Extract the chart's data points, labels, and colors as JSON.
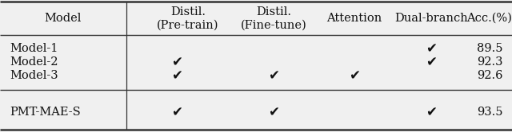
{
  "col_headers": [
    "Model",
    "Distil.\n(Pre-train)",
    "Distil.\n(Fine-tune)",
    "Attention",
    "Dual-branch",
    "Acc.(%)"
  ],
  "rows": [
    {
      "model": "Model-1",
      "pretrain": false,
      "finetune": false,
      "attention": false,
      "dual": true,
      "acc": "89.5"
    },
    {
      "model": "Model-2",
      "pretrain": true,
      "finetune": false,
      "attention": false,
      "dual": true,
      "acc": "92.3"
    },
    {
      "model": "Model-3",
      "pretrain": true,
      "finetune": true,
      "attention": true,
      "dual": false,
      "acc": "92.6"
    },
    {
      "model": "PMT-MAE-S",
      "pretrain": true,
      "finetune": true,
      "attention": false,
      "dual": true,
      "acc": "93.5"
    }
  ],
  "bg_color": "#f0f0f0",
  "text_color": "#111111",
  "line_color": "#333333",
  "header_fontsize": 10.5,
  "data_fontsize": 10.5,
  "check_fontsize": 12
}
